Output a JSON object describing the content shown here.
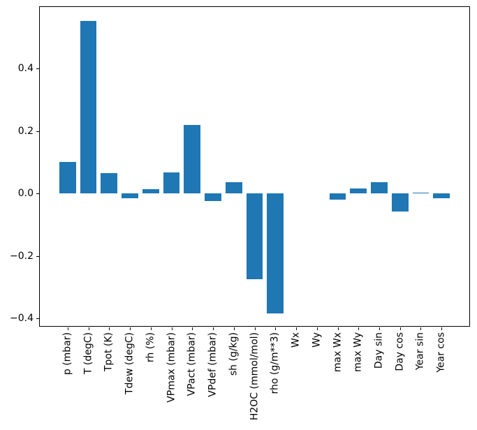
{
  "chart_data": {
    "type": "bar",
    "title": "",
    "xlabel": "",
    "ylabel": "",
    "categories": [
      "p (mbar)",
      "T (degC)",
      "Tpot (K)",
      "Tdew (degC)",
      "rh (%)",
      "VPmax (mbar)",
      "VPact (mbar)",
      "VPdef (mbar)",
      "sh (g/kg)",
      "H2OC (mmol/mol)",
      "rho (g/m**3)",
      "Wx",
      "Wy",
      "max Wx",
      "max Wy",
      "Day sin",
      "Day cos",
      "Year sin",
      "Year cos"
    ],
    "values": [
      0.1,
      0.553,
      0.065,
      -0.016,
      0.013,
      0.068,
      0.22,
      -0.025,
      0.036,
      -0.275,
      -0.385,
      0.0,
      0.0,
      -0.02,
      0.016,
      0.037,
      -0.057,
      0.002,
      -0.015
    ],
    "bar_color": "#1f77b4",
    "bar_width": 0.8,
    "xlim": [
      -1.34,
      19.34
    ],
    "ylim": [
      -0.4265,
      0.5965
    ],
    "yticks": [
      0.4,
      0.2,
      0.0,
      -0.2,
      -0.4
    ],
    "ytick_labels": [
      "0.4",
      "0.2",
      "0.0",
      "−0.2",
      "−0.4"
    ],
    "xtick_rotation": 90,
    "grid": false,
    "legend": "none"
  },
  "figure": {
    "background_color": "#ffffff",
    "spine_color": "#000000",
    "tick_color": "#000000",
    "label_color": "#000000"
  }
}
